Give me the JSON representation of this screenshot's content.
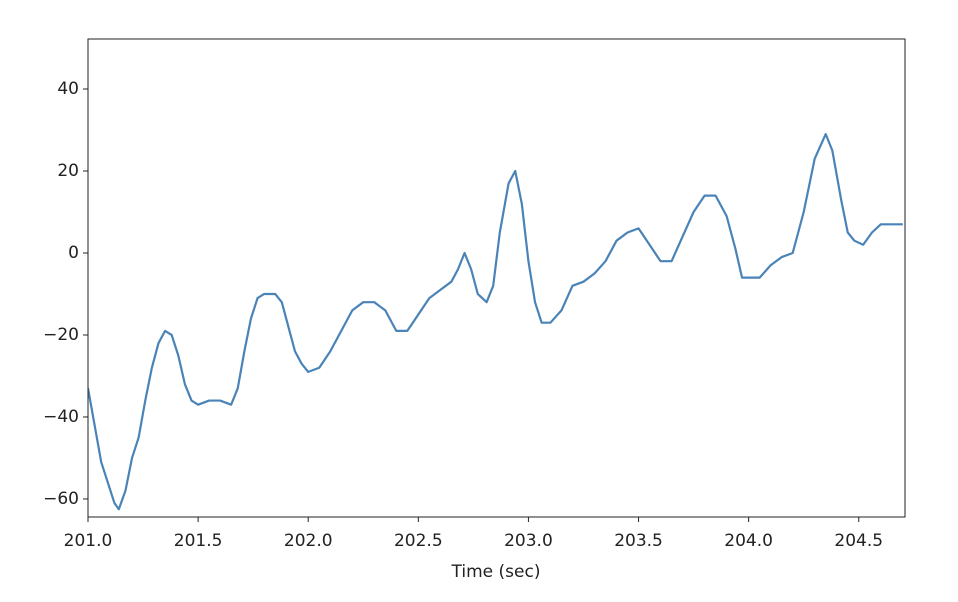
{
  "chart_data": {
    "type": "line",
    "xlabel": "Time (sec)",
    "x": [
      201.0,
      201.03,
      201.06,
      201.09,
      201.12,
      201.14,
      201.17,
      201.2,
      201.23,
      201.26,
      201.29,
      201.32,
      201.35,
      201.38,
      201.41,
      201.44,
      201.47,
      201.5,
      201.55,
      201.6,
      201.65,
      201.68,
      201.71,
      201.74,
      201.77,
      201.8,
      201.85,
      201.88,
      201.91,
      201.94,
      201.97,
      202.0,
      202.05,
      202.1,
      202.15,
      202.2,
      202.25,
      202.3,
      202.35,
      202.4,
      202.45,
      202.5,
      202.55,
      202.6,
      202.65,
      202.68,
      202.71,
      202.74,
      202.77,
      202.81,
      202.84,
      202.87,
      202.91,
      202.94,
      202.97,
      203.0,
      203.03,
      203.06,
      203.1,
      203.15,
      203.2,
      203.25,
      203.3,
      203.35,
      203.4,
      203.45,
      203.5,
      203.55,
      203.6,
      203.65,
      203.7,
      203.75,
      203.8,
      203.85,
      203.9,
      203.94,
      203.97,
      204.0,
      204.05,
      204.1,
      204.15,
      204.2,
      204.25,
      204.3,
      204.35,
      204.38,
      204.42,
      204.45,
      204.48,
      204.52,
      204.56,
      204.6,
      204.65,
      204.7
    ],
    "series": [
      {
        "color": "#4a83b7",
        "values": [
          -33,
          -42,
          -51,
          -56,
          -61,
          -62.5,
          -58,
          -50,
          -45,
          -36,
          -28,
          -22,
          -19,
          -20,
          -25,
          -32,
          -36,
          -37,
          -36,
          -36,
          -37,
          -33,
          -24,
          -16,
          -11,
          -10,
          -10,
          -12,
          -18,
          -24,
          -27,
          -29,
          -28,
          -24,
          -19,
          -14,
          -12,
          -12,
          -14,
          -19,
          -19,
          -15,
          -11,
          -9,
          -7,
          -4,
          0,
          -4,
          -10,
          -12,
          -8,
          5,
          17,
          20,
          12,
          -2,
          -12,
          -17,
          -17,
          -14,
          -8,
          -7,
          -5,
          -2,
          3,
          5,
          6,
          2,
          -2,
          -2,
          4,
          10,
          14,
          14,
          9,
          1,
          -6,
          -6,
          -6,
          -3,
          -1,
          0,
          10,
          23,
          29,
          25,
          13,
          5,
          3,
          2,
          5,
          7,
          7,
          7
        ]
      }
    ],
    "xlim": [
      201.0,
      204.71
    ],
    "ylim": [
      -64.4,
      52.2
    ],
    "xticks": [
      {
        "value": 201.0,
        "label": "201.0"
      },
      201.5,
      {
        "value": 202.0,
        "label": "202.0"
      },
      202.5,
      {
        "value": 203.0,
        "label": "203.0"
      },
      203.5,
      {
        "value": 204.0,
        "label": "204.0"
      },
      204.5
    ],
    "yticks": [
      {
        "value": -60,
        "label": "−60"
      },
      {
        "value": -40,
        "label": "−40"
      },
      {
        "value": -20,
        "label": "−20"
      },
      0,
      20,
      40
    ]
  }
}
